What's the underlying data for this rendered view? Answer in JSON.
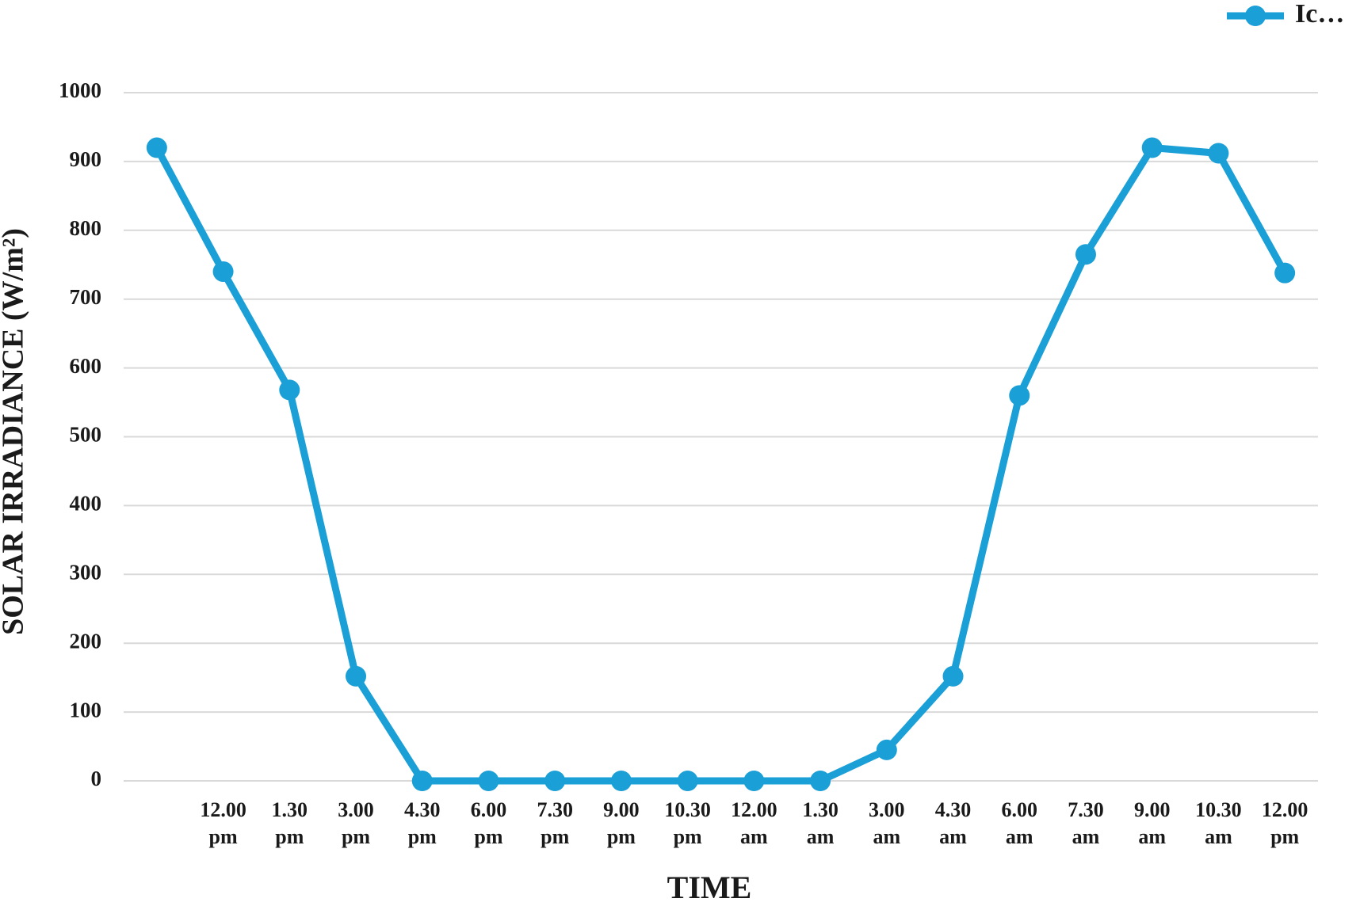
{
  "chart_data": {
    "type": "line",
    "x_label": "TIME",
    "y_label": "SOLAR IRRADIANCE (W/m²)",
    "categories": [
      null,
      "12.00 pm",
      "1.30 pm",
      "3.00 pm",
      "4.30 pm",
      "6.00 pm",
      "7.30 pm",
      "9.00 pm",
      "10.30 pm",
      "12.00 am",
      "1.30 am",
      "3.00 am",
      "4.30 am",
      "6.00 am",
      "7.30 am",
      "9.00 am",
      "10.30 am",
      "12.00 pm"
    ],
    "series": [
      {
        "name": "Ic…",
        "color": "#1a9fd6",
        "values": [
          920,
          740,
          568,
          152,
          0,
          0,
          0,
          0,
          0,
          0,
          0,
          45,
          152,
          560,
          765,
          920,
          912,
          738
        ]
      }
    ],
    "ylim": [
      0,
      1000
    ],
    "yticks": [
      0,
      100,
      200,
      300,
      400,
      500,
      600,
      700,
      800,
      900,
      1000
    ],
    "grid": true,
    "legend": "top-right"
  }
}
